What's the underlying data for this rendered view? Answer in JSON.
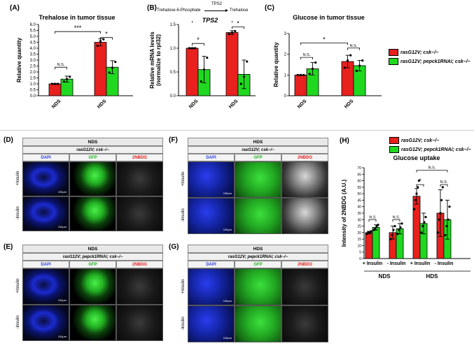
{
  "colors": {
    "red": "#e8201e",
    "green": "#20d820",
    "dapi": "#1a2ad8",
    "gfp": "#30d030"
  },
  "legend": {
    "item1": "rasG12V; csk−/−",
    "item2": "rasG12V; pepck1RNAi; csk−/−"
  },
  "panels": {
    "A": {
      "letter": "(A)",
      "title": "Trehalose in tumor tissue"
    },
    "B": {
      "letter": "(B)",
      "pathway_left": "Trehalose-6-Phosphate",
      "pathway_enzyme": "TPS2",
      "pathway_right": "Trehalose",
      "gene": "TPS2"
    },
    "C": {
      "letter": "(C)",
      "title": "Glucose in tumor tissue"
    },
    "D": {
      "letter": "(D)",
      "diet": "NDS",
      "genotype": "rasG12V; csk−/−"
    },
    "E": {
      "letter": "(E)",
      "diet": "NDS",
      "genotype": "rasG12V; pepck1RNAi; csk−/−"
    },
    "F": {
      "letter": "(F)",
      "diet": "HDS",
      "genotype": "rasG12V; csk−/−"
    },
    "G": {
      "letter": "(G)",
      "diet": "HDS",
      "genotype": "rasG12V; pepck1RNAi; csk−/−"
    },
    "H": {
      "letter": "(H)",
      "title": "Glucose uptake"
    }
  },
  "micro": {
    "channels": [
      "DAPI",
      "GFP",
      "2NBDG"
    ],
    "rows": [
      "+Insulin",
      "-Insulin"
    ],
    "scale_bar": "100μm"
  },
  "chart_data": [
    {
      "id": "A",
      "type": "bar",
      "title": "Trehalose in tumor tissue",
      "categories": [
        "NDS",
        "HDS"
      ],
      "ylabel": "Relative quantity",
      "ylim": [
        0,
        6
      ],
      "yticks": [
        "0.0",
        "0.5",
        "1.0",
        "1.5",
        "2.0",
        "2.5",
        "3.0",
        "3.5",
        "4.0",
        "4.5",
        "5.0",
        "5.5",
        "6.0"
      ],
      "series": [
        {
          "name": "rasG12V; csk−/−",
          "values": [
            1.0,
            4.5
          ],
          "errors": [
            0.03,
            0.3
          ],
          "points": [
            [
              1.0,
              1.0,
              1.0
            ],
            [
              4.2,
              4.6,
              4.75
            ]
          ]
        },
        {
          "name": "rasG12V; pepck1RNAi; csk−/−",
          "values": [
            1.4,
            2.4
          ],
          "errors": [
            0.25,
            0.55
          ],
          "points": [
            [
              1.2,
              1.4,
              1.6
            ],
            [
              1.95,
              2.35,
              2.85
            ]
          ]
        }
      ],
      "annotations": [
        {
          "from": [
            0,
            0
          ],
          "to": [
            0,
            1
          ],
          "y": 2.4,
          "text": "N.S."
        },
        {
          "from": [
            0,
            0
          ],
          "to": [
            1,
            0
          ],
          "y": 5.4,
          "text": "***"
        },
        {
          "from": [
            1,
            0
          ],
          "to": [
            1,
            1
          ],
          "y": 4.9,
          "text": "*"
        }
      ]
    },
    {
      "id": "B",
      "type": "bar",
      "categories": [
        "NDS",
        "HDS"
      ],
      "ylabel": "Relative mRNA levels (normalize to rpl32)",
      "ylim": [
        0,
        1.5
      ],
      "yticks": [
        "0.0",
        "0.5",
        "1.0",
        "1.5"
      ],
      "series": [
        {
          "name": "rasG12V; csk−/−",
          "values": [
            1.0,
            1.33
          ],
          "errors": [
            0.01,
            0.04
          ],
          "points": [
            [
              1.0,
              1.0,
              1.0
            ],
            [
              1.3,
              1.33,
              1.36
            ]
          ]
        },
        {
          "name": "rasG12V; pepck1RNAi; csk−/−",
          "values": [
            0.55,
            0.45
          ],
          "errors": [
            0.28,
            0.3
          ],
          "points": [
            [
              0.3,
              0.55,
              0.8
            ],
            [
              0.25,
              0.4,
              0.72
            ]
          ]
        }
      ],
      "annotations": [
        {
          "from": [
            0,
            0
          ],
          "to": [
            0,
            1
          ],
          "y": 1.1,
          "text": "*"
        },
        {
          "from": [
            0,
            0
          ],
          "to": [
            1,
            0
          ],
          "y": 1.58,
          "text": "*"
        },
        {
          "from": [
            1,
            0
          ],
          "to": [
            1,
            1
          ],
          "y": 1.45,
          "text": "*"
        }
      ]
    },
    {
      "id": "C",
      "type": "bar",
      "title": "Glucose in tumor tissue",
      "categories": [
        "NDS",
        "HDS"
      ],
      "ylabel": "Relative quantity",
      "ylim": [
        0,
        3
      ],
      "yticks": [
        "0",
        "1",
        "2",
        "3"
      ],
      "series": [
        {
          "name": "rasG12V; csk−/−",
          "values": [
            1.0,
            1.65
          ],
          "errors": [
            0.01,
            0.3
          ],
          "points": [
            [
              1.0,
              1.0,
              1.0
            ],
            [
              1.35,
              1.7,
              1.95
            ]
          ]
        },
        {
          "name": "rasG12V; pepck1RNAi; csk−/−",
          "values": [
            1.3,
            1.45
          ],
          "errors": [
            0.3,
            0.25
          ],
          "points": [
            [
              1.05,
              1.3,
              1.6
            ],
            [
              1.2,
              1.45,
              1.7
            ]
          ]
        }
      ],
      "annotations": [
        {
          "from": [
            0,
            0
          ],
          "to": [
            0,
            1
          ],
          "y": 1.85,
          "text": "N.S."
        },
        {
          "from": [
            0,
            0
          ],
          "to": [
            1,
            0
          ],
          "y": 2.55,
          "text": "*"
        },
        {
          "from": [
            1,
            0
          ],
          "to": [
            1,
            1
          ],
          "y": 2.3,
          "text": "N.S."
        }
      ]
    },
    {
      "id": "H",
      "type": "bar",
      "title": "Glucose uptake",
      "categories": [
        "+ Insulin",
        "- Insulin",
        "+ Insulin",
        "- Insulin"
      ],
      "groups": [
        "NDS",
        "HDS"
      ],
      "ylabel": "Intensity of 2NBDG (A.U.)",
      "ylim": [
        0,
        70
      ],
      "yticks": [
        "0",
        "5",
        "10",
        "15",
        "20",
        "25",
        "30",
        "35",
        "40",
        "45",
        "50",
        "55",
        "60",
        "65",
        "70"
      ],
      "series": [
        {
          "name": "rasG12V; csk−/−",
          "values": [
            20,
            20,
            48,
            35
          ],
          "errors": [
            1,
            5,
            6,
            18
          ],
          "points": [
            [
              19,
              20,
              20,
              21
            ],
            [
              15,
              18,
              22,
              25
            ],
            [
              38,
              45,
              50,
              55,
              60
            ],
            [
              20,
              30,
              35,
              45,
              55
            ]
          ]
        },
        {
          "name": "rasG12V; pepck1RNAi; csk−/−",
          "values": [
            24,
            23,
            27,
            30
          ],
          "errors": [
            2,
            4,
            8,
            15
          ],
          "points": [
            [
              22,
              23,
              25,
              26
            ],
            [
              19,
              22,
              24,
              27
            ],
            [
              20,
              25,
              28,
              32
            ],
            [
              18,
              25,
              30,
              40
            ]
          ]
        }
      ],
      "annotations": [
        {
          "from": [
            0,
            0
          ],
          "to": [
            0,
            1
          ],
          "y": 30,
          "text": "N.S"
        },
        {
          "from": [
            1,
            0
          ],
          "to": [
            1,
            1
          ],
          "y": 30,
          "text": "N.S."
        },
        {
          "from": [
            2,
            0
          ],
          "to": [
            2,
            1
          ],
          "y": 57,
          "text": "*"
        },
        {
          "from": [
            2,
            0
          ],
          "to": [
            3,
            1
          ],
          "y": 68,
          "text": "N.S."
        },
        {
          "from": [
            3,
            0
          ],
          "to": [
            3,
            1
          ],
          "y": 57,
          "text": "N.S."
        }
      ]
    }
  ]
}
